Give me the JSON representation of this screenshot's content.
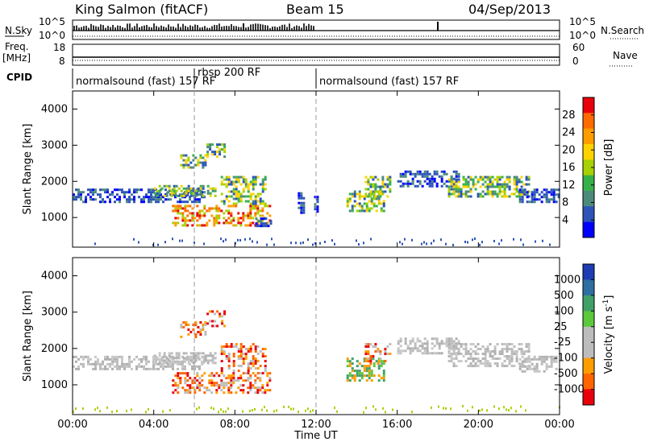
{
  "header": {
    "station": "King Salmon (fitACF)",
    "beam": "Beam 15",
    "date": "04/Sep/2013"
  },
  "summary_panels": {
    "nsky_label": "N.Sky",
    "nsky_ticks": [
      "10^5",
      "10^0"
    ],
    "nsearch_label": "N.Search",
    "nsearch_ticks": [
      "10^5",
      "10^0"
    ],
    "freq_label_line1": "Freq.",
    "freq_label_line2": "[MHz]",
    "freq_ticks": [
      "18",
      "8"
    ],
    "nave_label": "Nave",
    "nave_ticks": [
      "60",
      "0"
    ],
    "cpid_label": "CPID"
  },
  "cpid_segments": [
    {
      "label": "normalsound (fast) 157 RF",
      "start_hour": 0,
      "end_hour": 6
    },
    {
      "label": "rbsp 200 RF",
      "start_hour": 6,
      "end_hour": 12
    },
    {
      "label": "normalsound (fast) 157 RF",
      "start_hour": 12,
      "end_hour": 24
    }
  ],
  "chart_data": [
    {
      "type": "heatmap",
      "id": "power",
      "ylabel": "Slant Range [km]",
      "y_ticks": [
        1000,
        2000,
        3000,
        4000
      ],
      "ylim": [
        180,
        4500
      ],
      "x_ticks": [
        "00:00",
        "04:00",
        "08:00",
        "12:00",
        "16:00",
        "20:00",
        "00:00"
      ],
      "xlim_hours": [
        0,
        24
      ],
      "colorbar_label": "Power [dB]",
      "colorbar_ticks": [
        "28",
        "24",
        "20",
        "16",
        "12",
        "8",
        "4"
      ],
      "colorbar_colors": [
        "#e8000b",
        "#ff6a00",
        "#ff9c00",
        "#ffd300",
        "#a7d100",
        "#36b14a",
        "#4c8a7c",
        "#2c54b8",
        "#0000ff"
      ],
      "echo_regions": [
        {
          "t0": 0.0,
          "t1": 6.5,
          "r0": 1450,
          "r1": 1800,
          "level": "low"
        },
        {
          "t0": 4.0,
          "t1": 7.0,
          "r0": 1600,
          "r1": 1900,
          "level": "mid"
        },
        {
          "t0": 5.3,
          "t1": 6.6,
          "r0": 2350,
          "r1": 2750,
          "level": "mid"
        },
        {
          "t0": 6.6,
          "t1": 7.5,
          "r0": 2650,
          "r1": 3050,
          "level": "mid"
        },
        {
          "t0": 4.9,
          "t1": 9.7,
          "r0": 800,
          "r1": 1350,
          "level": "high"
        },
        {
          "t0": 7.3,
          "t1": 9.5,
          "r0": 1350,
          "r1": 2150,
          "level": "mid"
        },
        {
          "t0": 9.0,
          "t1": 9.8,
          "r0": 750,
          "r1": 1000,
          "level": "low"
        },
        {
          "t0": 11.1,
          "t1": 11.4,
          "r0": 1150,
          "r1": 1700,
          "level": "low"
        },
        {
          "t0": 11.9,
          "t1": 12.1,
          "r0": 1100,
          "r1": 1600,
          "level": "low"
        },
        {
          "t0": 13.5,
          "t1": 15.3,
          "r0": 1150,
          "r1": 1750,
          "level": "mid"
        },
        {
          "t0": 14.4,
          "t1": 15.6,
          "r0": 1600,
          "r1": 2150,
          "level": "mid"
        },
        {
          "t0": 16.0,
          "t1": 19.0,
          "r0": 1850,
          "r1": 2300,
          "level": "low"
        },
        {
          "t0": 18.5,
          "t1": 22.5,
          "r0": 1550,
          "r1": 2150,
          "level": "mid"
        },
        {
          "t0": 22.0,
          "t1": 24.0,
          "r0": 1400,
          "r1": 1800,
          "level": "low"
        }
      ]
    },
    {
      "type": "heatmap",
      "id": "velocity",
      "ylabel": "Slant Range [km]",
      "y_ticks": [
        1000,
        2000,
        3000,
        4000
      ],
      "ylim": [
        180,
        4500
      ],
      "x_ticks": [
        "00:00",
        "04:00",
        "08:00",
        "12:00",
        "16:00",
        "20:00",
        "00:00"
      ],
      "xlim_hours": [
        0,
        24
      ],
      "xlabel": "Time UT",
      "colorbar_label": "Velocity [m s",
      "colorbar_label_sup": "-1",
      "colorbar_label_end": "]",
      "colorbar_ticks": [
        "1000",
        "500",
        "100",
        "25",
        "-25",
        "-100",
        "-500",
        "-1000"
      ],
      "colorbar_colors": [
        "#1e3cb4",
        "#2c6fa0",
        "#3fa06a",
        "#5cc83c",
        "#bcbcbc",
        "#bcbcbc",
        "#ff9c00",
        "#ff6400",
        "#e8000b"
      ],
      "echo_regions": [
        {
          "t0": 0.0,
          "t1": 6.5,
          "r0": 1450,
          "r1": 1800,
          "level": "gray"
        },
        {
          "t0": 4.0,
          "t1": 7.0,
          "r0": 1600,
          "r1": 1900,
          "level": "gray"
        },
        {
          "t0": 5.3,
          "t1": 6.6,
          "r0": 2350,
          "r1": 2750,
          "level": "neg"
        },
        {
          "t0": 6.6,
          "t1": 7.5,
          "r0": 2650,
          "r1": 3050,
          "level": "neg"
        },
        {
          "t0": 4.9,
          "t1": 9.7,
          "r0": 800,
          "r1": 1350,
          "level": "neg"
        },
        {
          "t0": 7.3,
          "t1": 9.5,
          "r0": 1350,
          "r1": 2150,
          "level": "neg"
        },
        {
          "t0": 13.5,
          "t1": 15.3,
          "r0": 1150,
          "r1": 1750,
          "level": "pos"
        },
        {
          "t0": 14.4,
          "t1": 15.6,
          "r0": 1600,
          "r1": 2150,
          "level": "neg"
        },
        {
          "t0": 16.0,
          "t1": 19.0,
          "r0": 1850,
          "r1": 2300,
          "level": "gray"
        },
        {
          "t0": 18.5,
          "t1": 22.5,
          "r0": 1550,
          "r1": 2150,
          "level": "gray"
        },
        {
          "t0": 22.0,
          "t1": 24.0,
          "r0": 1400,
          "r1": 1800,
          "level": "gray"
        }
      ]
    }
  ]
}
